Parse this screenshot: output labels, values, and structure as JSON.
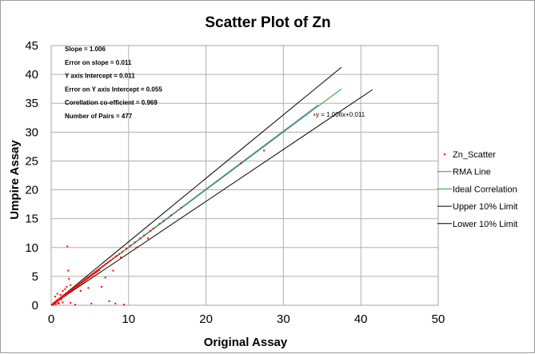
{
  "chart_data": {
    "type": "scatter",
    "title": "Scatter Plot of Zn",
    "xlabel": "Original Assay",
    "ylabel": "Umpire Assay",
    "xlim": [
      0,
      50
    ],
    "ylim": [
      0,
      45
    ],
    "x_ticks": [
      0,
      10,
      20,
      30,
      40,
      50
    ],
    "y_ticks": [
      0,
      5,
      10,
      15,
      20,
      25,
      30,
      35,
      40,
      45
    ],
    "grid": true,
    "legend_position": "right",
    "stats": [
      "Slope = 1.006",
      "Error on slope = 0.011",
      "Y axis Intercept = 0.011",
      "Error on Y axis Intercept = 0.055",
      "Corellation co-efficient = 0.969",
      "Number of Pairs = 477"
    ],
    "trend_equation": "y = 1.006x+0.011",
    "series": [
      {
        "name": "Zn_Scatter",
        "kind": "points",
        "color": "#ff0000",
        "points": [
          [
            0.2,
            0.2
          ],
          [
            0.3,
            0.4
          ],
          [
            0.4,
            0.3
          ],
          [
            0.5,
            0.6
          ],
          [
            0.6,
            0.5
          ],
          [
            0.7,
            0.8
          ],
          [
            0.8,
            0.7
          ],
          [
            0.9,
            1.0
          ],
          [
            1.0,
            0.9
          ],
          [
            1.1,
            1.2
          ],
          [
            1.2,
            1.1
          ],
          [
            1.3,
            1.4
          ],
          [
            1.4,
            1.3
          ],
          [
            1.5,
            1.6
          ],
          [
            1.6,
            1.5
          ],
          [
            1.7,
            1.8
          ],
          [
            1.8,
            1.7
          ],
          [
            1.9,
            2.0
          ],
          [
            2.0,
            1.9
          ],
          [
            2.1,
            2.2
          ],
          [
            2.2,
            2.1
          ],
          [
            2.3,
            2.4
          ],
          [
            2.4,
            2.3
          ],
          [
            2.5,
            2.6
          ],
          [
            2.6,
            2.5
          ],
          [
            2.7,
            2.8
          ],
          [
            2.8,
            2.7
          ],
          [
            2.9,
            3.0
          ],
          [
            3.0,
            2.9
          ],
          [
            3.1,
            3.2
          ],
          [
            3.2,
            3.1
          ],
          [
            3.3,
            3.4
          ],
          [
            3.4,
            3.3
          ],
          [
            3.5,
            3.6
          ],
          [
            3.6,
            3.5
          ],
          [
            3.7,
            3.8
          ],
          [
            3.8,
            3.7
          ],
          [
            3.9,
            4.0
          ],
          [
            4.0,
            3.9
          ],
          [
            4.1,
            4.2
          ],
          [
            4.2,
            4.1
          ],
          [
            4.3,
            4.4
          ],
          [
            4.4,
            4.3
          ],
          [
            4.5,
            4.6
          ],
          [
            4.6,
            4.5
          ],
          [
            4.7,
            4.8
          ],
          [
            4.8,
            4.7
          ],
          [
            4.9,
            5.0
          ],
          [
            5.0,
            4.9
          ],
          [
            5.1,
            5.2
          ],
          [
            5.2,
            5.1
          ],
          [
            5.3,
            5.4
          ],
          [
            5.4,
            5.3
          ],
          [
            5.5,
            5.6
          ],
          [
            5.6,
            5.5
          ],
          [
            5.7,
            5.8
          ],
          [
            5.8,
            5.7
          ],
          [
            5.9,
            6.0
          ],
          [
            6.0,
            5.9
          ],
          [
            6.1,
            6.2
          ],
          [
            6.2,
            6.1
          ],
          [
            6.3,
            6.4
          ],
          [
            6.5,
            6.6
          ],
          [
            6.7,
            6.8
          ],
          [
            6.9,
            7.0
          ],
          [
            7.1,
            7.2
          ],
          [
            7.3,
            7.4
          ],
          [
            7.5,
            7.6
          ],
          [
            7.7,
            7.8
          ],
          [
            8.0,
            8.1
          ],
          [
            8.3,
            8.4
          ],
          [
            8.5,
            8.6
          ],
          [
            8.8,
            8.9
          ],
          [
            9.2,
            9.3
          ],
          [
            9.7,
            9.8
          ],
          [
            10.2,
            10.3
          ],
          [
            10.8,
            10.9
          ],
          [
            11.5,
            11.6
          ],
          [
            12.0,
            12.1
          ],
          [
            12.8,
            12.9
          ],
          [
            13.2,
            13.3
          ],
          [
            14.0,
            14.1
          ],
          [
            14.5,
            14.6
          ],
          [
            15.5,
            15.6
          ],
          [
            16.8,
            16.9
          ],
          [
            24.5,
            24.6
          ],
          [
            27.5,
            26.8
          ],
          [
            34.0,
            33.0
          ],
          [
            0.8,
            2.0
          ],
          [
            0.5,
            1.5
          ],
          [
            1.2,
            1.8
          ],
          [
            1.5,
            2.5
          ],
          [
            2.0,
            3.2
          ],
          [
            2.3,
            4.6
          ],
          [
            2.2,
            6.0
          ],
          [
            2.1,
            10.2
          ],
          [
            1.8,
            2.8
          ],
          [
            2.5,
            3.5
          ],
          [
            1.0,
            0.3
          ],
          [
            1.5,
            0.5
          ],
          [
            2.5,
            0.4
          ],
          [
            3.1,
            0.1
          ],
          [
            5.2,
            0.3
          ],
          [
            7.5,
            0.7
          ],
          [
            8.3,
            0.3
          ],
          [
            9.4,
            0.1
          ],
          [
            6.5,
            3.2
          ],
          [
            8.0,
            6.0
          ],
          [
            7.0,
            4.8
          ],
          [
            4.8,
            3.0
          ],
          [
            3.8,
            2.5
          ],
          [
            9.0,
            8.3
          ],
          [
            12.5,
            11.6
          ],
          [
            11.0,
            10.0
          ],
          [
            0.3,
            0.1
          ],
          [
            0.6,
            0.2
          ],
          [
            0.9,
            0.4
          ],
          [
            1.3,
            1.0
          ]
        ]
      },
      {
        "name": "RMA Line",
        "kind": "line",
        "color": "#4f6fd0",
        "x": [
          0,
          34.5
        ],
        "y": [
          0.011,
          34.718
        ]
      },
      {
        "name": "Ideal Correlation",
        "kind": "line",
        "color": "#2ca02c",
        "x": [
          0,
          37.5
        ],
        "y": [
          0,
          37.5
        ]
      },
      {
        "name": "Upper 10% Limit",
        "kind": "line",
        "color": "#000000",
        "x": [
          0,
          37.5
        ],
        "y": [
          0,
          41.25
        ]
      },
      {
        "name": "Lower 10% Limit",
        "kind": "line",
        "color": "#000000",
        "x": [
          0,
          41.5
        ],
        "y": [
          0,
          37.35
        ]
      }
    ]
  }
}
